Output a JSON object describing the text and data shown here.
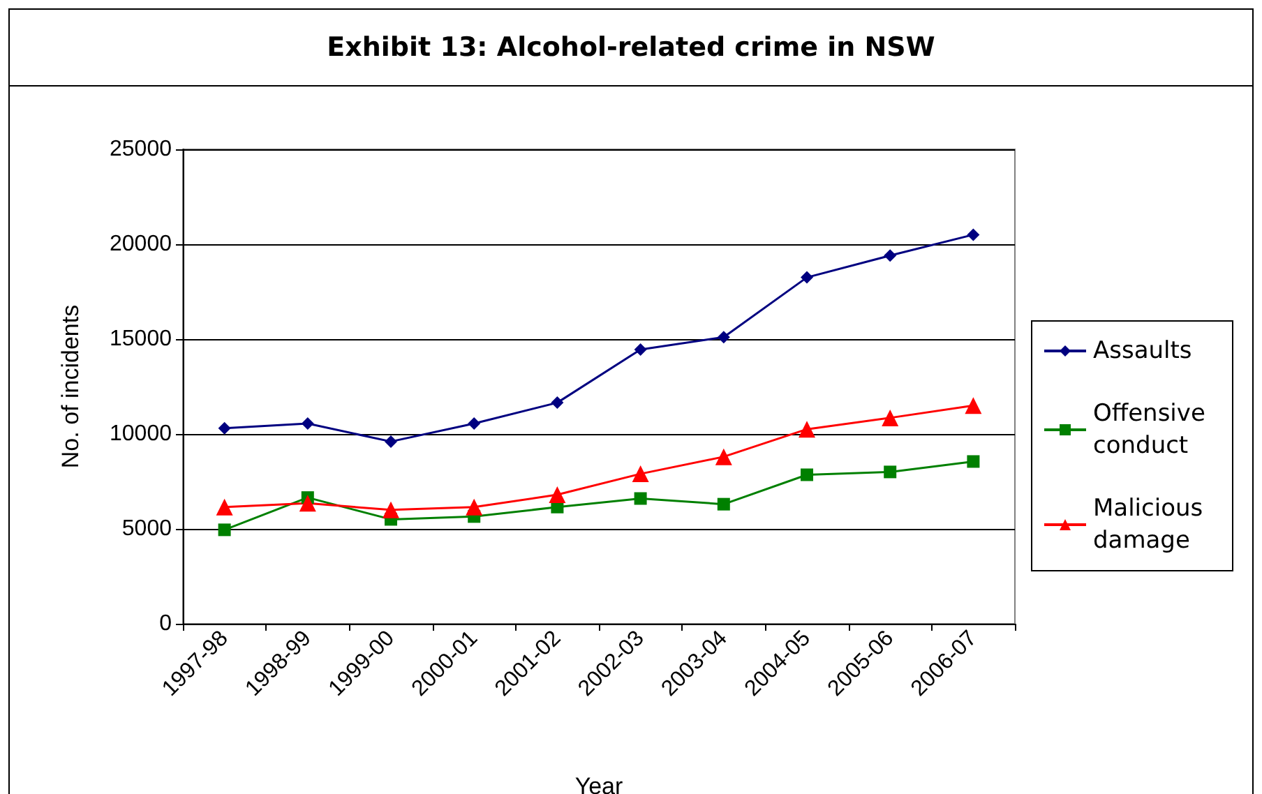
{
  "chart_data": {
    "type": "line",
    "title": "Exhibit 13: Alcohol-related crime in NSW",
    "xlabel": "Year",
    "ylabel": "No. of incidents",
    "categories": [
      "1997-98",
      "1998-99",
      "1999-00",
      "2000-01",
      "2001-02",
      "2002-03",
      "2003-04",
      "2004-05",
      "2005-06",
      "2006-07"
    ],
    "series": [
      {
        "name": "Assaults",
        "color": "#000080",
        "marker": "diamond",
        "values": [
          10300,
          10550,
          9600,
          10550,
          11650,
          14450,
          15100,
          18250,
          19400,
          20500
        ]
      },
      {
        "name": "Offensive conduct",
        "color": "#008000",
        "marker": "square",
        "values": [
          4950,
          6650,
          5500,
          5650,
          6150,
          6600,
          6300,
          7850,
          8000,
          8550
        ]
      },
      {
        "name": "Malicious damage",
        "color": "#ff0000",
        "marker": "triangle",
        "values": [
          6150,
          6350,
          6000,
          6150,
          6800,
          7900,
          8800,
          10250,
          10850,
          11500
        ]
      }
    ],
    "ylim": [
      0,
      25000
    ],
    "yticks": [
      0,
      5000,
      10000,
      15000,
      20000,
      25000
    ],
    "grid": "y",
    "legend": "right",
    "line_style": "solid"
  }
}
